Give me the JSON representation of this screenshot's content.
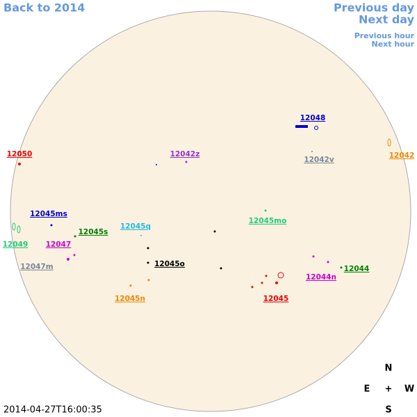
{
  "navigation": {
    "back": "Back to 2014",
    "previous_day": "Previous day",
    "next_day": "Next day",
    "previous_hour": "Previous hour",
    "next_hour": "Next hour"
  },
  "timestamp": "2014-04-27T16:00:35",
  "compass": {
    "north": "N",
    "east": "E",
    "center": "+",
    "west": "W",
    "south": "S"
  },
  "regions": [
    {
      "label": "12048",
      "color": "#0000cc"
    },
    {
      "label": "12050",
      "color": "#ee0000"
    },
    {
      "label": "12042z",
      "color": "#9933cc"
    },
    {
      "label": "12042v",
      "color": "#778899"
    },
    {
      "label": "12042",
      "color": "#ee8800"
    },
    {
      "label": "12045ms",
      "color": "#0000cc"
    },
    {
      "label": "12045q",
      "color": "#22bbdd"
    },
    {
      "label": "12045mo",
      "color": "#22cc77"
    },
    {
      "label": "12045s",
      "color": "#008000"
    },
    {
      "label": "12049",
      "color": "#22cc77"
    },
    {
      "label": "12047",
      "color": "#cc00cc"
    },
    {
      "label": "12047m",
      "color": "#778899"
    },
    {
      "label": "12045o",
      "color": "#000000"
    },
    {
      "label": "12044",
      "color": "#008000"
    },
    {
      "label": "12044n",
      "color": "#cc00cc"
    },
    {
      "label": "12045n",
      "color": "#ee8800"
    },
    {
      "label": "12045",
      "color": "#ee0000"
    }
  ]
}
